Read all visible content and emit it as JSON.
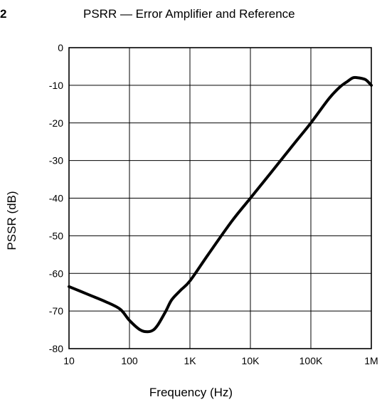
{
  "figure_number": "2",
  "chart_data": {
    "type": "line",
    "title": "PSRR — Error Amplifier and Reference",
    "xlabel": "Frequency (Hz)",
    "ylabel": "PSSR (dB)",
    "x_scale": "log",
    "xlim": [
      10,
      1000000
    ],
    "ylim": [
      -80,
      0
    ],
    "x_ticks": [
      10,
      100,
      1000,
      10000,
      100000,
      1000000
    ],
    "x_tick_labels": [
      "10",
      "100",
      "1K",
      "10K",
      "100K",
      "1M"
    ],
    "y_ticks": [
      0,
      -10,
      -20,
      -30,
      -40,
      -50,
      -60,
      -70,
      -80
    ],
    "y_tick_labels": [
      "0",
      "-10",
      "-20",
      "-30",
      "-40",
      "-50",
      "-60",
      "-70",
      "-80"
    ],
    "grid": true,
    "series": [
      {
        "color": "#000000",
        "x": [
          10,
          20,
          40,
          70,
          100,
          150,
          200,
          250,
          300,
          400,
          500,
          700,
          1000,
          2000,
          5000,
          10000,
          20000,
          50000,
          100000,
          200000,
          300000,
          400000,
          500000,
          600000,
          800000,
          1000000
        ],
        "y": [
          -63.5,
          -65.5,
          -67.5,
          -69.5,
          -72.5,
          -75,
          -75.5,
          -75,
          -73.5,
          -70,
          -67,
          -64.5,
          -62,
          -55,
          -46,
          -40,
          -34,
          -26,
          -20,
          -13.5,
          -10.5,
          -9,
          -8,
          -8,
          -8.5,
          -10
        ]
      }
    ]
  }
}
